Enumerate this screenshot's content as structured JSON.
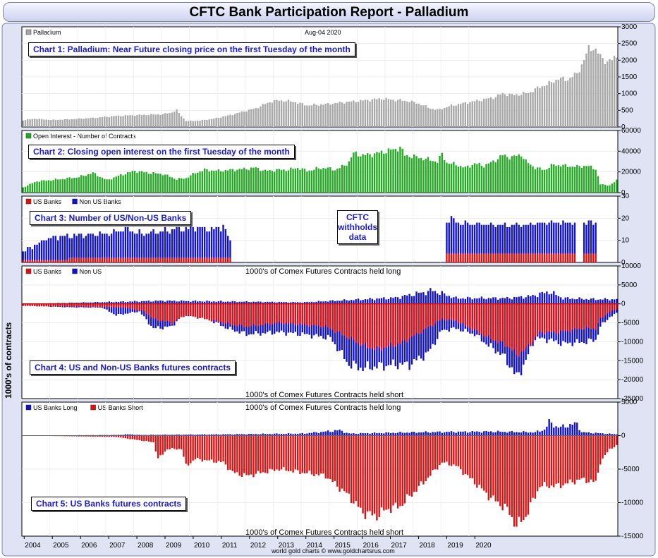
{
  "title": "CFTC Bank Participation Report - Palladium",
  "footer": "world gold charts © www.goldchartsrus.com",
  "y_axis_title": "1000's of contracts",
  "withhold_note": [
    "CFTC",
    "withholds",
    "data"
  ],
  "colors": {
    "price": "#a8a8a8",
    "oi": "#22aa22",
    "us": "#e01010",
    "non_us": "#1010d0",
    "zero_line": "#d01010"
  },
  "chart_data": [
    {
      "id": "chart1",
      "type": "bar",
      "title": "Chart 1: Palladium: Near Future closing price on the first Tuesday of the month",
      "legend": [
        "Palladium"
      ],
      "date_label": "Aug-04  2020",
      "ylim": [
        0,
        3000
      ],
      "yticks": [
        0,
        500,
        1000,
        1500,
        2000,
        2500,
        3000
      ],
      "knots": [
        [
          0,
          200
        ],
        [
          5,
          250
        ],
        [
          12,
          210
        ],
        [
          20,
          230
        ],
        [
          30,
          270
        ],
        [
          40,
          330
        ],
        [
          50,
          360
        ],
        [
          60,
          380
        ],
        [
          64,
          440
        ],
        [
          66,
          500
        ],
        [
          68,
          330
        ],
        [
          70,
          180
        ],
        [
          76,
          190
        ],
        [
          82,
          250
        ],
        [
          88,
          340
        ],
        [
          94,
          450
        ],
        [
          100,
          560
        ],
        [
          106,
          750
        ],
        [
          110,
          800
        ],
        [
          116,
          760
        ],
        [
          122,
          650
        ],
        [
          130,
          680
        ],
        [
          138,
          740
        ],
        [
          146,
          790
        ],
        [
          154,
          850
        ],
        [
          158,
          820
        ],
        [
          162,
          800
        ],
        [
          166,
          770
        ],
        [
          170,
          700
        ],
        [
          175,
          560
        ],
        [
          178,
          510
        ],
        [
          184,
          640
        ],
        [
          190,
          720
        ],
        [
          196,
          800
        ],
        [
          202,
          880
        ],
        [
          206,
          1000
        ],
        [
          210,
          960
        ],
        [
          214,
          980
        ],
        [
          218,
          1050
        ],
        [
          222,
          1200
        ],
        [
          226,
          1300
        ],
        [
          230,
          1450
        ],
        [
          234,
          1420
        ],
        [
          238,
          1600
        ],
        [
          241,
          2000
        ],
        [
          243,
          2350
        ],
        [
          245,
          2380
        ],
        [
          247,
          2200
        ],
        [
          249,
          2050
        ],
        [
          251,
          1950
        ],
        [
          253,
          2000
        ],
        [
          255,
          2150
        ]
      ]
    },
    {
      "id": "chart2",
      "type": "bar",
      "title": "Chart 2: Closing open interest on the first Tuesday of the month",
      "legend": [
        "Open Interest - Number of Contracts"
      ],
      "ylim": [
        0,
        60000
      ],
      "yticks": [
        0,
        20000,
        40000,
        60000
      ],
      "knots": [
        [
          0,
          5000
        ],
        [
          6,
          11000
        ],
        [
          12,
          12000
        ],
        [
          24,
          15000
        ],
        [
          30,
          19000
        ],
        [
          36,
          12000
        ],
        [
          42,
          17000
        ],
        [
          48,
          21000
        ],
        [
          54,
          19000
        ],
        [
          60,
          18000
        ],
        [
          66,
          13000
        ],
        [
          70,
          14000
        ],
        [
          74,
          19000
        ],
        [
          78,
          22000
        ],
        [
          84,
          21000
        ],
        [
          90,
          22000
        ],
        [
          96,
          23000
        ],
        [
          100,
          24000
        ],
        [
          104,
          21000
        ],
        [
          110,
          22000
        ],
        [
          114,
          22000
        ],
        [
          118,
          24000
        ],
        [
          122,
          21000
        ],
        [
          126,
          23000
        ],
        [
          130,
          24000
        ],
        [
          134,
          22000
        ],
        [
          138,
          26000
        ],
        [
          140,
          30000
        ],
        [
          142,
          38000
        ],
        [
          146,
          36000
        ],
        [
          150,
          37000
        ],
        [
          154,
          39000
        ],
        [
          160,
          42000
        ],
        [
          162,
          44000
        ],
        [
          164,
          36000
        ],
        [
          170,
          34000
        ],
        [
          176,
          31000
        ],
        [
          178,
          30000
        ],
        [
          180,
          37000
        ],
        [
          182,
          29000
        ],
        [
          186,
          27000
        ],
        [
          190,
          24000
        ],
        [
          194,
          28000
        ],
        [
          198,
          26000
        ],
        [
          202,
          30000
        ],
        [
          206,
          36000
        ],
        [
          210,
          34000
        ],
        [
          214,
          37000
        ],
        [
          216,
          30000
        ],
        [
          220,
          24000
        ],
        [
          224,
          22000
        ],
        [
          228,
          27000
        ],
        [
          232,
          26000
        ],
        [
          238,
          25000
        ],
        [
          242,
          26000
        ],
        [
          246,
          23000
        ],
        [
          248,
          8000
        ],
        [
          252,
          7000
        ],
        [
          254,
          10000
        ],
        [
          255,
          12000
        ]
      ]
    },
    {
      "id": "chart3",
      "type": "bar",
      "title": "Chart 3: Number of US/Non-US Banks",
      "legend": [
        "US Banks",
        "Non US Banks"
      ],
      "ylim": [
        0,
        30
      ],
      "yticks": [
        0,
        10,
        20,
        30
      ],
      "knots_total": [
        [
          0,
          5
        ],
        [
          6,
          8
        ],
        [
          10,
          11
        ],
        [
          20,
          12
        ],
        [
          36,
          13
        ],
        [
          40,
          14
        ],
        [
          44,
          15
        ],
        [
          50,
          13
        ],
        [
          60,
          14
        ],
        [
          64,
          15
        ],
        [
          70,
          15
        ],
        [
          74,
          16
        ],
        [
          80,
          15
        ],
        [
          86,
          16
        ],
        [
          88,
          12
        ],
        [
          89,
          10
        ]
      ],
      "knots_us": [
        [
          0,
          1
        ],
        [
          40,
          2
        ],
        [
          70,
          2
        ],
        [
          89,
          2
        ]
      ],
      "knots_total_late": [
        [
          182,
          18
        ],
        [
          184,
          20
        ],
        [
          186,
          18
        ],
        [
          200,
          17
        ],
        [
          214,
          17
        ],
        [
          224,
          18
        ],
        [
          232,
          18
        ],
        [
          240,
          18
        ],
        [
          246,
          18
        ]
      ],
      "us_late": 4,
      "gaps": [
        [
          90,
          181
        ],
        [
          238,
          240
        ]
      ]
    },
    {
      "id": "chart4",
      "type": "bar",
      "title": "Chart 4: US and Non-US Banks futures contracts",
      "legend": [
        "US Banks",
        "Non US"
      ],
      "top_label": "1000's of Comex Futures Contracts held long",
      "bottom_label": "1000's of Comex Futures Contracts held short",
      "ylim": [
        -25000,
        10000
      ],
      "yticks": [
        -25000,
        -20000,
        -15000,
        -10000,
        -5000,
        0,
        5000,
        10000
      ],
      "knots_long": [
        [
          0,
          0
        ],
        [
          30,
          400
        ],
        [
          60,
          800
        ],
        [
          90,
          600
        ],
        [
          120,
          400
        ],
        [
          140,
          1000
        ],
        [
          160,
          1600
        ],
        [
          176,
          3500
        ],
        [
          186,
          1500
        ],
        [
          208,
          1500
        ],
        [
          218,
          2000
        ],
        [
          226,
          3200
        ],
        [
          232,
          1500
        ],
        [
          246,
          1200
        ],
        [
          255,
          1200
        ]
      ],
      "knots_short_us": [
        [
          0,
          -500
        ],
        [
          30,
          -800
        ],
        [
          44,
          -1000
        ],
        [
          52,
          -2000
        ],
        [
          56,
          -4000
        ],
        [
          64,
          -5000
        ],
        [
          70,
          -3000
        ],
        [
          90,
          -5500
        ],
        [
          96,
          -6000
        ],
        [
          110,
          -5000
        ],
        [
          130,
          -6000
        ],
        [
          140,
          -9000
        ],
        [
          146,
          -11000
        ],
        [
          152,
          -12000
        ],
        [
          162,
          -10500
        ],
        [
          172,
          -7000
        ],
        [
          180,
          -4000
        ],
        [
          186,
          -4500
        ],
        [
          194,
          -7000
        ],
        [
          200,
          -9000
        ],
        [
          208,
          -11000
        ],
        [
          212,
          -13500
        ],
        [
          216,
          -12000
        ],
        [
          222,
          -7500
        ],
        [
          230,
          -7500
        ],
        [
          240,
          -6500
        ],
        [
          246,
          -6500
        ],
        [
          248,
          -4000
        ],
        [
          252,
          -2000
        ],
        [
          255,
          -1500
        ]
      ],
      "knots_short_nonus": [
        [
          0,
          -500
        ],
        [
          20,
          -900
        ],
        [
          34,
          -1000
        ],
        [
          40,
          -3000
        ],
        [
          50,
          -2000
        ],
        [
          56,
          -6500
        ],
        [
          64,
          -6000
        ],
        [
          68,
          -3000
        ],
        [
          76,
          -3000
        ],
        [
          88,
          -6500
        ],
        [
          96,
          -8000
        ],
        [
          110,
          -7500
        ],
        [
          120,
          -8000
        ],
        [
          132,
          -9000
        ],
        [
          140,
          -16000
        ],
        [
          146,
          -17000
        ],
        [
          152,
          -16500
        ],
        [
          160,
          -16000
        ],
        [
          166,
          -16000
        ],
        [
          174,
          -13000
        ],
        [
          180,
          -7000
        ],
        [
          186,
          -6500
        ],
        [
          194,
          -8000
        ],
        [
          200,
          -11000
        ],
        [
          206,
          -13500
        ],
        [
          210,
          -17000
        ],
        [
          212,
          -19500
        ],
        [
          216,
          -15000
        ],
        [
          220,
          -9000
        ],
        [
          226,
          -9500
        ],
        [
          232,
          -10500
        ],
        [
          242,
          -10000
        ],
        [
          246,
          -9500
        ],
        [
          248,
          -6000
        ],
        [
          252,
          -3500
        ],
        [
          255,
          -2500
        ]
      ]
    },
    {
      "id": "chart5",
      "type": "bar",
      "title": "Chart 5: US Banks futures contracts",
      "legend": [
        "US Banks Long",
        "US Banks Short"
      ],
      "top_label": "1000's of Comex Futures Contracts held long",
      "bottom_label": "1000's of Comex Futures Contracts held short",
      "ylim": [
        -15000,
        5000
      ],
      "yticks": [
        -15000,
        -10000,
        -5000,
        0,
        5000
      ],
      "knots_long": [
        [
          0,
          0
        ],
        [
          40,
          100
        ],
        [
          46,
          200
        ],
        [
          50,
          100
        ],
        [
          90,
          200
        ],
        [
          120,
          300
        ],
        [
          130,
          600
        ],
        [
          136,
          800
        ],
        [
          140,
          300
        ],
        [
          170,
          500
        ],
        [
          200,
          600
        ],
        [
          220,
          500
        ],
        [
          224,
          900
        ],
        [
          226,
          2000
        ],
        [
          230,
          1200
        ],
        [
          234,
          1500
        ],
        [
          238,
          1800
        ],
        [
          240,
          500
        ],
        [
          255,
          200
        ]
      ],
      "knots_short": [
        [
          0,
          0
        ],
        [
          40,
          -200
        ],
        [
          56,
          -1000
        ],
        [
          58,
          -3500
        ],
        [
          62,
          -2000
        ],
        [
          68,
          -2000
        ],
        [
          70,
          -4500
        ],
        [
          74,
          -3500
        ],
        [
          86,
          -4000
        ],
        [
          90,
          -5500
        ],
        [
          96,
          -6000
        ],
        [
          110,
          -5000
        ],
        [
          130,
          -6000
        ],
        [
          140,
          -9000
        ],
        [
          146,
          -11500
        ],
        [
          152,
          -12000
        ],
        [
          156,
          -11000
        ],
        [
          162,
          -10500
        ],
        [
          172,
          -7000
        ],
        [
          180,
          -4000
        ],
        [
          186,
          -4500
        ],
        [
          194,
          -7000
        ],
        [
          200,
          -9000
        ],
        [
          208,
          -11000
        ],
        [
          212,
          -13500
        ],
        [
          216,
          -12000
        ],
        [
          222,
          -7500
        ],
        [
          230,
          -7500
        ],
        [
          240,
          -6500
        ],
        [
          246,
          -7000
        ],
        [
          248,
          -4000
        ],
        [
          252,
          -2000
        ],
        [
          255,
          -1500
        ]
      ]
    }
  ],
  "x_axis": {
    "months": 256,
    "start_year": 2004,
    "labels": [
      "2004",
      "2005",
      "2006",
      "2007",
      "2008",
      "2009",
      "2010",
      "2011",
      "2012",
      "2013",
      "2014",
      "2015",
      "2016",
      "2017",
      "2018",
      "2019",
      "2020"
    ]
  }
}
